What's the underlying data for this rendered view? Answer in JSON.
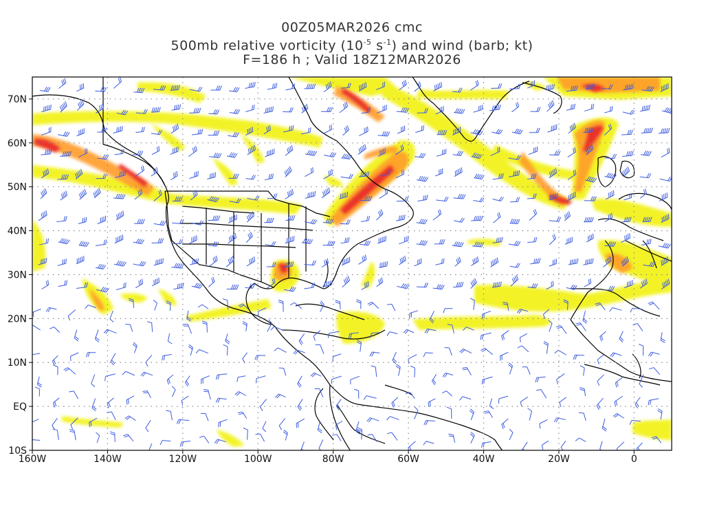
{
  "title": {
    "line1": "00Z05MAR2026 cmc",
    "line2_prefix": "500mb relative vorticity (10",
    "line2_exp1": "-5",
    "line2_mid": " s",
    "line2_exp2": "-1",
    "line2_suffix": ") and wind (barb; kt)",
    "line3": "F=186 h ; Valid 18Z12MAR2026"
  },
  "map": {
    "lon_range": [
      -160,
      10
    ],
    "lat_range": [
      -10,
      75
    ],
    "lon_ticks": [
      "160W",
      "140W",
      "120W",
      "100W",
      "80W",
      "60W",
      "40W",
      "20W",
      "0"
    ],
    "lat_ticks": [
      "70N",
      "60N",
      "50N",
      "40N",
      "30N",
      "20N",
      "10N",
      "EQ",
      "10S"
    ],
    "grid": "dotted",
    "colors": {
      "shade_low": "#f2f21c",
      "shade_mid": "#ffd84a",
      "shade_high": "#ff9c2a",
      "shade_max": "#e8262a",
      "barbs": "#3a5ae0",
      "coastline": "#000000"
    }
  }
}
